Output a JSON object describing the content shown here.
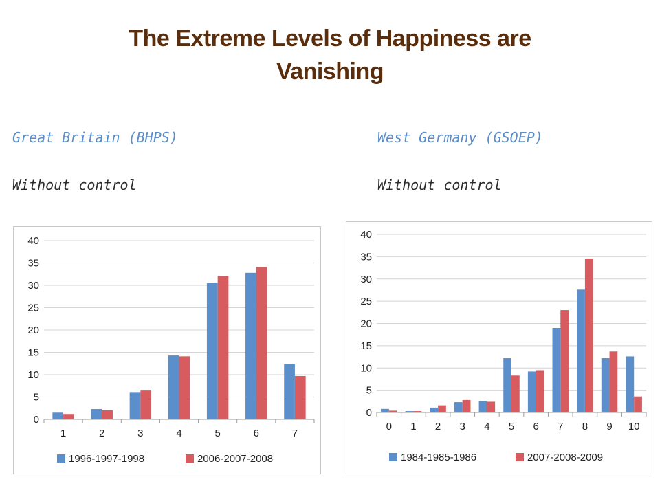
{
  "slide": {
    "title_line1": "The Extreme Levels of Happiness are",
    "title_line2": "Vanishing"
  },
  "left_panel": {
    "country": "Great Britain (BHPS)",
    "subtitle": "Without control"
  },
  "right_panel": {
    "country": "West Germany (GSOEP)",
    "subtitle": "Without control"
  },
  "colors": {
    "series_1": "#5b8fcb",
    "series_2": "#d65c5f",
    "title": "#5a2e0c",
    "country_label": "#5b8dc8"
  },
  "chart_data": [
    {
      "type": "bar",
      "title": "",
      "xlabel": "",
      "ylabel": "",
      "ylim": [
        0,
        40
      ],
      "yticks": [
        0,
        5,
        10,
        15,
        20,
        25,
        30,
        35,
        40
      ],
      "grid": true,
      "legend": "bottom",
      "categories": [
        "1",
        "2",
        "3",
        "4",
        "5",
        "6",
        "7"
      ],
      "series": [
        {
          "name": "1996-1997-1998",
          "values": [
            1.5,
            2.3,
            6.1,
            14.3,
            30.5,
            32.8,
            12.4
          ]
        },
        {
          "name": "2006-2007-2008",
          "values": [
            1.2,
            2.0,
            6.6,
            14.1,
            32.1,
            34.1,
            9.7
          ]
        }
      ]
    },
    {
      "type": "bar",
      "title": "",
      "xlabel": "",
      "ylabel": "",
      "ylim": [
        0,
        40
      ],
      "yticks": [
        0,
        5,
        10,
        15,
        20,
        25,
        30,
        35,
        40
      ],
      "grid": true,
      "legend": "bottom",
      "categories": [
        "0",
        "1",
        "2",
        "3",
        "4",
        "5",
        "6",
        "7",
        "8",
        "9",
        "10"
      ],
      "series": [
        {
          "name": "1984-1985-1986",
          "values": [
            0.8,
            0.3,
            1.1,
            2.3,
            2.6,
            12.2,
            9.2,
            19.0,
            27.6,
            12.2,
            12.6
          ]
        },
        {
          "name": "2007-2008-2009",
          "values": [
            0.4,
            0.3,
            1.6,
            2.8,
            2.4,
            8.3,
            9.5,
            23.0,
            34.6,
            13.7,
            3.6
          ]
        }
      ]
    }
  ]
}
